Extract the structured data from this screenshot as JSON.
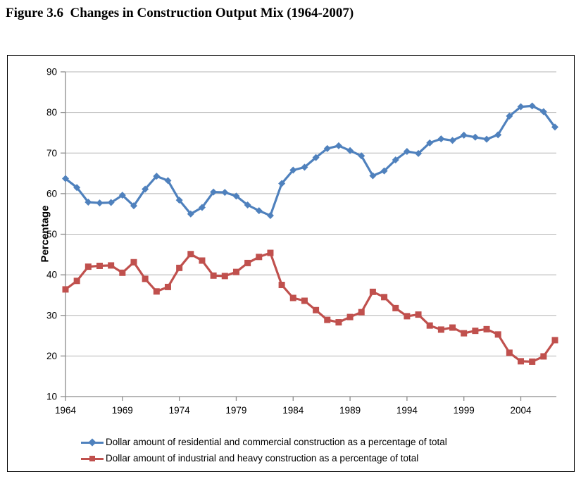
{
  "figure": {
    "title": "Figure 3.6  Changes in Construction Output Mix (1964-2007)"
  },
  "chart_data": {
    "type": "line",
    "title": "Figure 3.6  Changes in Construction Output Mix (1964-2007)",
    "xlabel": "",
    "ylabel": "Percentage",
    "ylim": [
      10,
      90
    ],
    "yticks": [
      10,
      20,
      30,
      40,
      50,
      60,
      70,
      80,
      90
    ],
    "xticks": [
      1964,
      1969,
      1974,
      1979,
      1984,
      1989,
      1994,
      1999,
      2004
    ],
    "grid": "horizontal",
    "legend_position": "bottom",
    "x": [
      1964,
      1965,
      1966,
      1967,
      1968,
      1969,
      1970,
      1971,
      1972,
      1973,
      1974,
      1975,
      1976,
      1977,
      1978,
      1979,
      1980,
      1981,
      1982,
      1983,
      1984,
      1985,
      1986,
      1987,
      1988,
      1989,
      1990,
      1991,
      1992,
      1993,
      1994,
      1995,
      1996,
      1997,
      1998,
      1999,
      2000,
      2001,
      2002,
      2003,
      2004,
      2005,
      2006,
      2007
    ],
    "series": [
      {
        "name": "Dollar amount of residential and commercial construction as a percentage of total",
        "color": "#4F81BD",
        "marker": "diamond",
        "values": [
          63.7,
          61.5,
          57.9,
          57.7,
          57.8,
          59.6,
          57.0,
          61.1,
          64.3,
          63.2,
          58.4,
          55.0,
          56.6,
          60.4,
          60.3,
          59.4,
          57.2,
          55.8,
          54.6,
          62.5,
          65.8,
          66.5,
          68.9,
          71.1,
          71.8,
          70.6,
          69.3,
          64.4,
          65.6,
          68.3,
          70.4,
          69.9,
          72.5,
          73.5,
          73.1,
          74.4,
          73.9,
          73.4,
          74.5,
          79.1,
          81.4,
          81.6,
          80.2,
          76.4
        ]
      },
      {
        "name": "Dollar amount of industrial and heavy construction as a percentage of total",
        "color": "#C0504D",
        "marker": "square",
        "values": [
          36.4,
          38.5,
          42.0,
          42.2,
          42.3,
          40.5,
          43.1,
          39.0,
          35.9,
          37.0,
          41.7,
          45.1,
          43.5,
          39.8,
          39.7,
          40.7,
          42.9,
          44.4,
          45.4,
          37.5,
          34.3,
          33.6,
          31.3,
          28.9,
          28.3,
          29.6,
          30.8,
          35.8,
          34.5,
          31.8,
          29.8,
          30.2,
          27.5,
          26.5,
          27.0,
          25.6,
          26.2,
          26.6,
          25.3,
          20.8,
          18.7,
          18.6,
          19.9,
          23.9
        ]
      }
    ],
    "axis_color": "#8c8c8c",
    "gridline_color": "#b5b5b5",
    "tick_label_color": "#000000"
  }
}
